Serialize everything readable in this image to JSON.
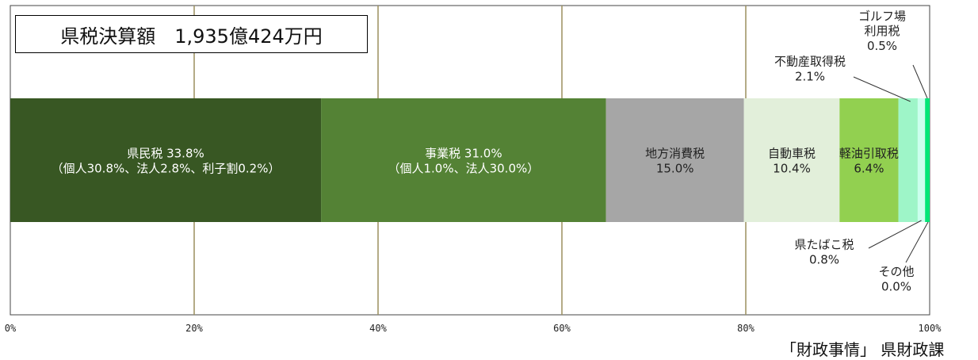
{
  "title": "県税決算額　1,935億424万円",
  "source": "「財政事情」 県財政課",
  "chart_data": {
    "type": "bar",
    "orientation": "horizontal",
    "stacked": true,
    "xlim": [
      0,
      100
    ],
    "x_ticks": [
      "0%",
      "20%",
      "40%",
      "60%",
      "80%",
      "100%"
    ],
    "grid": "vertical",
    "series": [
      {
        "name": "県民税",
        "value": 33.8,
        "label": [
          "県民税 33.8%",
          "（個人30.8%、法人2.8%、利子割0.2%）"
        ],
        "color": "#385723"
      },
      {
        "name": "事業税",
        "value": 31.0,
        "label": [
          "事業税 31.0%",
          "（個人1.0%、法人30.0%）"
        ],
        "color": "#548235"
      },
      {
        "name": "地方消費税",
        "value": 15.0,
        "label": [
          "地方消費税",
          "15.0%"
        ],
        "color": "#a6a6a6"
      },
      {
        "name": "自動車税",
        "value": 10.4,
        "label": [
          "自動車税",
          "10.4%"
        ],
        "color": "#e2efda"
      },
      {
        "name": "軽油引取税",
        "value": 6.4,
        "label": [
          "軽油引取税",
          "6.4%"
        ],
        "color": "#92d050"
      },
      {
        "name": "不動産取得税",
        "value": 2.1,
        "label": [
          "不動産取得税",
          "2.1%"
        ],
        "color": "#9ef5c8"
      },
      {
        "name": "県たばこ税",
        "value": 0.8,
        "label": [
          "県たばこ税",
          "0.8%"
        ],
        "color": "#ccffee"
      },
      {
        "name": "ゴルフ場利用税",
        "value": 0.5,
        "label": [
          "ゴルフ場",
          "利用税",
          "0.5%"
        ],
        "color": "#00e676"
      },
      {
        "name": "その他",
        "value": 0.0,
        "label": [
          "その他",
          "0.0%"
        ],
        "color": "#33cc66"
      }
    ]
  }
}
